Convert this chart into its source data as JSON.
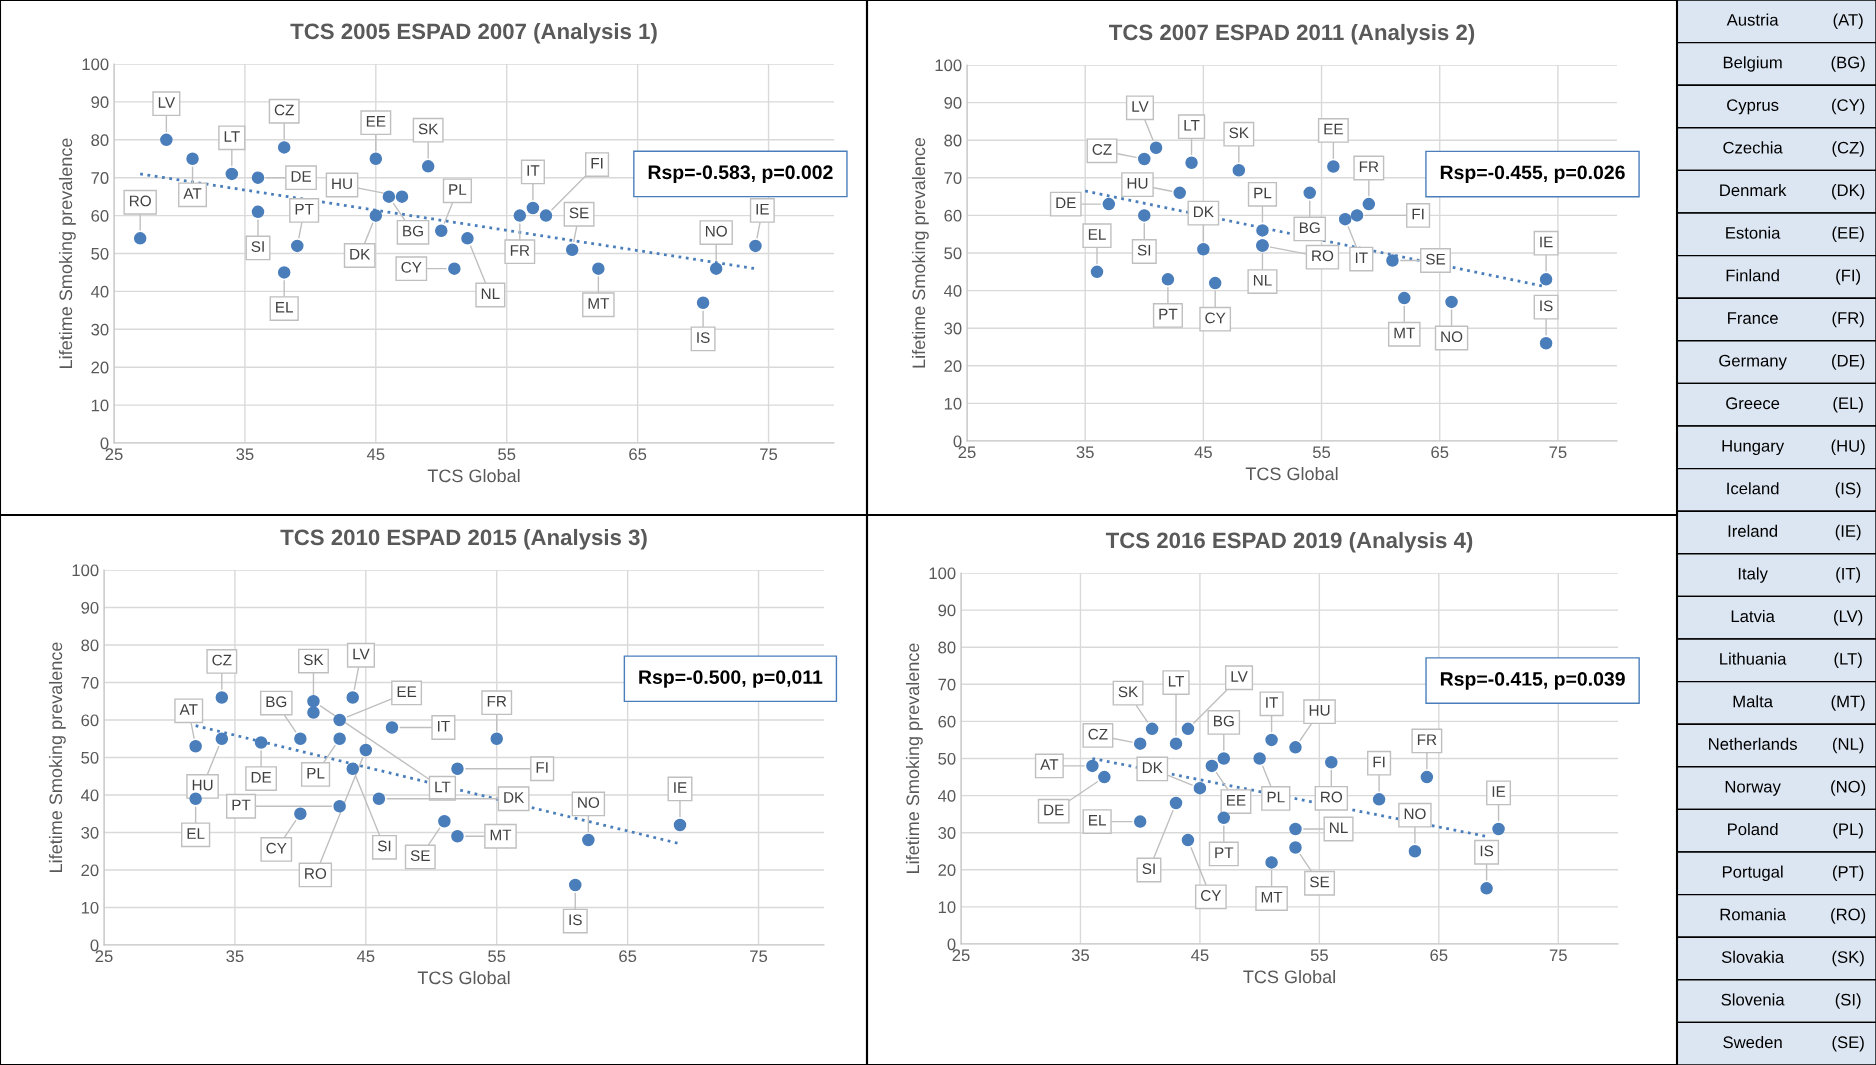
{
  "chart_data": [
    {
      "type": "scatter",
      "title": "TCS 2005 ESPAD 2007 (Analysis 1)",
      "xlabel": "TCS Global",
      "ylabel": "Lifetime Smoking prevalence",
      "xlim": [
        25,
        80
      ],
      "ylim": [
        0,
        100
      ],
      "xticks": [
        25,
        35,
        45,
        55,
        65,
        75
      ],
      "yticks": [
        0,
        10,
        20,
        30,
        40,
        50,
        60,
        70,
        80,
        90,
        100
      ],
      "grid": true,
      "series": [
        {
          "marker": "circle",
          "color": "#4a7ebb",
          "x": [
            29,
            31,
            34,
            36,
            38,
            36,
            39,
            38,
            27,
            45,
            45,
            46,
            47,
            49,
            50,
            51,
            52,
            56,
            57,
            58,
            60,
            62,
            70,
            71,
            74
          ],
          "values": [
            80,
            75,
            71,
            70,
            78,
            61,
            52,
            45,
            54,
            75,
            60,
            65,
            65,
            73,
            56,
            46,
            54,
            60,
            62,
            60,
            51,
            46,
            37,
            46,
            52
          ]
        },
        {
          "type": "line",
          "line_style": "dotted",
          "color": "#4a7ebb",
          "x": [
            27,
            74
          ],
          "values": [
            71,
            46
          ]
        }
      ],
      "annotations": [
        {
          "text": "LV",
          "x": 29,
          "y": 80
        },
        {
          "text": "AT",
          "x": 31,
          "y": 75
        },
        {
          "text": "LT",
          "x": 34,
          "y": 71
        },
        {
          "text": "DE",
          "x": 36,
          "y": 70
        },
        {
          "text": "CZ",
          "x": 38,
          "y": 78
        },
        {
          "text": "SI",
          "x": 36,
          "y": 61
        },
        {
          "text": "PT",
          "x": 39,
          "y": 52
        },
        {
          "text": "EL",
          "x": 38,
          "y": 45
        },
        {
          "text": "RO",
          "x": 27,
          "y": 54
        },
        {
          "text": "EE",
          "x": 45,
          "y": 75
        },
        {
          "text": "DK",
          "x": 45,
          "y": 60
        },
        {
          "text": "BG",
          "x": 46,
          "y": 65
        },
        {
          "text": "HU",
          "x": 47,
          "y": 65
        },
        {
          "text": "SK",
          "x": 49,
          "y": 73
        },
        {
          "text": "PL",
          "x": 50,
          "y": 56
        },
        {
          "text": "CY",
          "x": 51,
          "y": 46
        },
        {
          "text": "NL",
          "x": 52,
          "y": 54
        },
        {
          "text": "FR",
          "x": 56,
          "y": 60
        },
        {
          "text": "IT",
          "x": 57,
          "y": 62
        },
        {
          "text": "FI",
          "x": 58,
          "y": 60
        },
        {
          "text": "SE",
          "x": 60,
          "y": 51
        },
        {
          "text": "MT",
          "x": 62,
          "y": 46
        },
        {
          "text": "IS",
          "x": 70,
          "y": 37
        },
        {
          "text": "NO",
          "x": 71,
          "y": 46
        },
        {
          "text": "IE",
          "x": 74,
          "y": 52
        },
        "Rsp=-0.583, p=0.002"
      ]
    },
    {
      "type": "scatter",
      "title": "TCS 2007 ESPAD 2011 (Analysis 2)",
      "xlabel": "TCS Global",
      "ylabel": "Lifetime Smoking prevalence",
      "xlim": [
        25,
        80
      ],
      "ylim": [
        0,
        100
      ],
      "xticks": [
        25,
        35,
        45,
        55,
        65,
        75
      ],
      "yticks": [
        0,
        10,
        20,
        30,
        40,
        50,
        60,
        70,
        80,
        90,
        100
      ],
      "grid": true,
      "series": [
        {
          "marker": "circle",
          "color": "#4a7ebb",
          "x": [
            41,
            40,
            44,
            48,
            43,
            37,
            40,
            36,
            45,
            42,
            46,
            50,
            50,
            50,
            54,
            56,
            57,
            58,
            59,
            61,
            62,
            66,
            74,
            74
          ],
          "values": [
            78,
            75,
            74,
            72,
            66,
            63,
            60,
            45,
            51,
            43,
            42,
            56,
            52,
            52,
            66,
            73,
            59,
            60,
            63,
            48,
            38,
            37,
            43,
            26
          ]
        },
        {
          "type": "line",
          "line_style": "dotted",
          "color": "#4a7ebb",
          "x": [
            35,
            74
          ],
          "values": [
            66.5,
            41
          ]
        }
      ],
      "annotations": [
        {
          "text": "LV",
          "x": 41,
          "y": 78
        },
        {
          "text": "CZ",
          "x": 40,
          "y": 75
        },
        {
          "text": "LT",
          "x": 44,
          "y": 74
        },
        {
          "text": "SK",
          "x": 48,
          "y": 72
        },
        {
          "text": "HU",
          "x": 43,
          "y": 66
        },
        {
          "text": "DE",
          "x": 37,
          "y": 63
        },
        {
          "text": "SI",
          "x": 40,
          "y": 60
        },
        {
          "text": "EL",
          "x": 36,
          "y": 45
        },
        {
          "text": "DK",
          "x": 45,
          "y": 51
        },
        {
          "text": "PT",
          "x": 42,
          "y": 43
        },
        {
          "text": "CY",
          "x": 46,
          "y": 42
        },
        {
          "text": "PL",
          "x": 50,
          "y": 56
        },
        {
          "text": "NL",
          "x": 50,
          "y": 52
        },
        {
          "text": "RO",
          "x": 50,
          "y": 52
        },
        {
          "text": "BG",
          "x": 54,
          "y": 66
        },
        {
          "text": "EE",
          "x": 56,
          "y": 73
        },
        {
          "text": "IT",
          "x": 57,
          "y": 59
        },
        {
          "text": "FI",
          "x": 58,
          "y": 60
        },
        {
          "text": "FR",
          "x": 59,
          "y": 63
        },
        {
          "text": "SE",
          "x": 61,
          "y": 48
        },
        {
          "text": "MT",
          "x": 62,
          "y": 38
        },
        {
          "text": "NO",
          "x": 66,
          "y": 37
        },
        {
          "text": "IE",
          "x": 74,
          "y": 43
        },
        {
          "text": "IS",
          "x": 74,
          "y": 26
        },
        "Rsp=-0.455, p=0.026"
      ]
    },
    {
      "type": "scatter",
      "title": "TCS 2010 ESPAD 2015 (Analysis 3)",
      "xlabel": "TCS Global",
      "ylabel": "Lifetime Smoking prevalence",
      "xlim": [
        25,
        80
      ],
      "ylim": [
        0,
        100
      ],
      "xticks": [
        25,
        35,
        45,
        55,
        65,
        75
      ],
      "yticks": [
        0,
        10,
        20,
        30,
        40,
        50,
        60,
        70,
        80,
        90,
        100
      ],
      "grid": true,
      "series": [
        {
          "marker": "circle",
          "color": "#4a7ebb",
          "x": [
            34,
            32,
            34,
            32,
            37,
            40,
            41,
            41,
            44,
            43,
            43,
            47,
            45,
            44,
            40,
            43,
            46,
            55,
            52,
            51,
            52,
            62,
            61,
            69
          ],
          "values": [
            66,
            53,
            55,
            39,
            54,
            55,
            62,
            65,
            66,
            60,
            55,
            58,
            52,
            47,
            35,
            37,
            39,
            55,
            47,
            33,
            29,
            28,
            16,
            32
          ]
        },
        {
          "type": "line",
          "line_style": "dotted",
          "color": "#4a7ebb",
          "x": [
            32,
            69
          ],
          "values": [
            58.5,
            27
          ]
        }
      ],
      "annotations": [
        {
          "text": "CZ",
          "x": 34,
          "y": 66
        },
        {
          "text": "AT",
          "x": 32,
          "y": 53
        },
        {
          "text": "HU",
          "x": 34,
          "y": 55
        },
        {
          "text": "EL",
          "x": 32,
          "y": 39
        },
        {
          "text": "DE",
          "x": 37,
          "y": 54
        },
        {
          "text": "BG",
          "x": 40,
          "y": 55
        },
        {
          "text": "SK",
          "x": 41,
          "y": 62
        },
        {
          "text": "LT",
          "x": 41,
          "y": 65
        },
        {
          "text": "LV",
          "x": 44,
          "y": 66
        },
        {
          "text": "EE",
          "x": 43,
          "y": 60
        },
        {
          "text": "PL",
          "x": 43,
          "y": 55
        },
        {
          "text": "IT",
          "x": 47,
          "y": 58
        },
        {
          "text": "RO",
          "x": 45,
          "y": 52
        },
        {
          "text": "SI",
          "x": 44,
          "y": 47
        },
        {
          "text": "CY",
          "x": 40,
          "y": 35
        },
        {
          "text": "PT",
          "x": 43,
          "y": 37
        },
        {
          "text": "DK",
          "x": 46,
          "y": 39
        },
        {
          "text": "FR",
          "x": 55,
          "y": 55
        },
        {
          "text": "FI",
          "x": 52,
          "y": 47
        },
        {
          "text": "SE",
          "x": 51,
          "y": 33
        },
        {
          "text": "MT",
          "x": 52,
          "y": 29
        },
        {
          "text": "NO",
          "x": 62,
          "y": 28
        },
        {
          "text": "IS",
          "x": 61,
          "y": 16
        },
        {
          "text": "IE",
          "x": 69,
          "y": 32
        },
        "Rsp=-0.500, p=0,011"
      ]
    },
    {
      "type": "scatter",
      "title": "TCS 2016 ESPAD 2019 (Analysis 4)",
      "xlabel": "TCS Global",
      "ylabel": "Lifetime Smoking prevalence",
      "xlim": [
        25,
        80
      ],
      "ylim": [
        0,
        100
      ],
      "xticks": [
        25,
        35,
        45,
        55,
        65,
        75
      ],
      "yticks": [
        0,
        10,
        20,
        30,
        40,
        50,
        60,
        70,
        80,
        90,
        100
      ],
      "grid": true,
      "series": [
        {
          "marker": "circle",
          "color": "#4a7ebb",
          "x": [
            36,
            37,
            40,
            41,
            44,
            43,
            46,
            47,
            51,
            53,
            50,
            56,
            45,
            43,
            40,
            44,
            47,
            51,
            53,
            53,
            60,
            64,
            70,
            63,
            69
          ],
          "values": [
            48,
            45,
            54,
            58,
            58,
            54,
            48,
            50,
            55,
            53,
            50,
            49,
            42,
            38,
            33,
            28,
            34,
            22,
            31,
            26,
            39,
            45,
            31,
            25,
            15
          ]
        },
        {
          "type": "line",
          "line_style": "dotted",
          "color": "#4a7ebb",
          "x": [
            36,
            69
          ],
          "values": [
            50,
            29
          ]
        }
      ],
      "annotations": [
        {
          "text": "AT",
          "x": 36,
          "y": 48
        },
        {
          "text": "DE",
          "x": 37,
          "y": 45
        },
        {
          "text": "CZ",
          "x": 40,
          "y": 54
        },
        {
          "text": "SK",
          "x": 41,
          "y": 58
        },
        {
          "text": "LV",
          "x": 44,
          "y": 58
        },
        {
          "text": "LT",
          "x": 43,
          "y": 54
        },
        {
          "text": "EE",
          "x": 46,
          "y": 48
        },
        {
          "text": "BG",
          "x": 47,
          "y": 50
        },
        {
          "text": "IT",
          "x": 51,
          "y": 55
        },
        {
          "text": "HU",
          "x": 53,
          "y": 53
        },
        {
          "text": "PL",
          "x": 50,
          "y": 50
        },
        {
          "text": "RO",
          "x": 56,
          "y": 49
        },
        {
          "text": "DK",
          "x": 45,
          "y": 42
        },
        {
          "text": "SI",
          "x": 43,
          "y": 38
        },
        {
          "text": "EL",
          "x": 40,
          "y": 33
        },
        {
          "text": "CY",
          "x": 44,
          "y": 28
        },
        {
          "text": "PT",
          "x": 47,
          "y": 34
        },
        {
          "text": "MT",
          "x": 51,
          "y": 22
        },
        {
          "text": "NL",
          "x": 53,
          "y": 31
        },
        {
          "text": "SE",
          "x": 53,
          "y": 26
        },
        {
          "text": "FI",
          "x": 60,
          "y": 39
        },
        {
          "text": "FR",
          "x": 64,
          "y": 45
        },
        {
          "text": "IE",
          "x": 70,
          "y": 31
        },
        {
          "text": "NO",
          "x": 63,
          "y": 25
        },
        {
          "text": "IS",
          "x": 69,
          "y": 15
        },
        "Rsp=-0.415, p=0.039"
      ]
    },
    {
      "type": "other",
      "annotations": [
        "Austria",
        "(AT)",
        "Belgium",
        "(BG)",
        "Cyprus",
        "(CY)",
        "Czechia",
        "(CZ)",
        "Denmark",
        "(DK)",
        "Estonia",
        "(EE)",
        "Finland",
        "(FI)",
        "France",
        "(FR)",
        "Germany",
        "(DE)",
        "Greece",
        "(EL)",
        "Hungary",
        "(HU)",
        "Iceland",
        "(IS)",
        "Ireland",
        "(IE)",
        "Italy",
        "(IT)",
        "Latvia",
        "(LV)",
        "Lithuania",
        "(LT)",
        "Malta",
        "(MT)",
        "Netherlands",
        "(NL)",
        "Norway",
        "(NO)",
        "Poland",
        "(PL)",
        "Portugal",
        "(PT)",
        "Romania",
        "(RO)",
        "Slovakia",
        "(SK)",
        "Slovenia",
        "(SI)",
        "Sweden",
        "(SE)"
      ]
    }
  ]
}
